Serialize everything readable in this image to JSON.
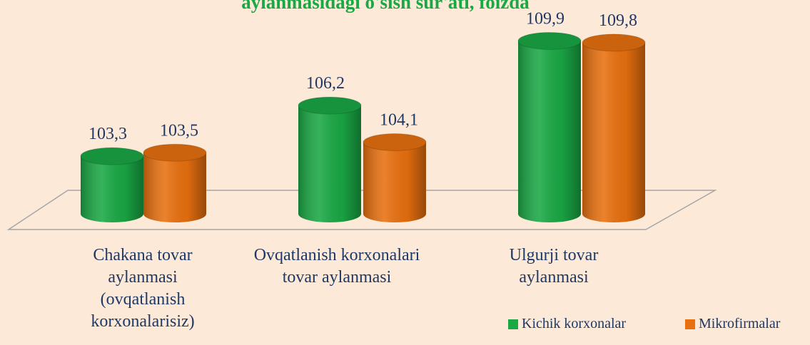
{
  "chart_data": {
    "type": "bar",
    "title": "aylanmasidagi o'sish sur'ati, foizda",
    "categories": [
      "Chakana tovar aylanmasi (ovqatlanish korxonalarisiz)",
      "Ovqatlanish korxonalari tovar aylanmasi",
      "Ulgurji tovar aylanmasi"
    ],
    "series": [
      {
        "name": "Kichik korxonalar",
        "color": "#1aa845",
        "values": [
          103.3,
          106.2,
          109.9
        ],
        "value_labels": [
          "103,3",
          "106,2",
          "109,9"
        ]
      },
      {
        "name": "Mikrofirmalar",
        "color": "#e8700f",
        "values": [
          103.5,
          104.1,
          109.8
        ],
        "value_labels": [
          "103,5",
          "104,1",
          "109,8"
        ]
      }
    ],
    "ylim": [
      100,
      110
    ],
    "legend": "bottom-right"
  }
}
